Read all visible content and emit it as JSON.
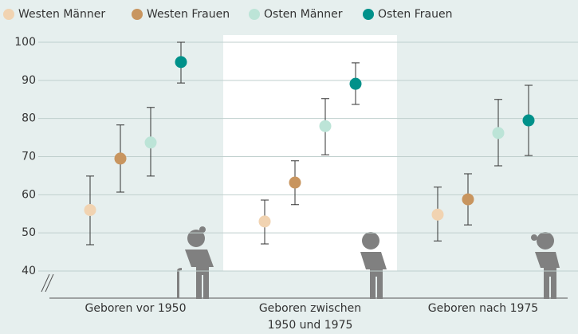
{
  "chart_data": {
    "type": "dot_errorbar",
    "categories": [
      [
        "Geboren vor 1950"
      ],
      [
        "Geboren zwischen",
        "1950 und 1975"
      ],
      [
        "Geboren nach 1975"
      ]
    ],
    "series": [
      {
        "name": "Westen Männer",
        "color": "#f1d3b1",
        "values": [
          56,
          53,
          54.8
        ],
        "ci_low": [
          46.9,
          47.1,
          47.9
        ],
        "ci_high": [
          64.9,
          58.6,
          62
        ]
      },
      {
        "name": "Westen Frauen",
        "color": "#c8955f",
        "values": [
          69.5,
          63.2,
          58.8
        ],
        "ci_low": [
          60.7,
          57.4,
          52.1
        ],
        "ci_high": [
          78.3,
          68.9,
          65.5
        ]
      },
      {
        "name": "Osten Männer",
        "color": "#bce4d7",
        "values": [
          73.7,
          78,
          76.2
        ],
        "ci_low": [
          64.9,
          70.5,
          67.6
        ],
        "ci_high": [
          82.9,
          85.2,
          85
        ]
      },
      {
        "name": "Osten Frauen",
        "color": "#00918a",
        "values": [
          94.8,
          89.1,
          79.5
        ],
        "ci_low": [
          89.3,
          83.7,
          70.3
        ],
        "ci_high": [
          100,
          94.6,
          88.7
        ]
      }
    ],
    "ylim": [
      40,
      100
    ],
    "yticks": [
      40,
      50,
      60,
      70,
      80,
      90,
      100
    ],
    "grid": true
  }
}
